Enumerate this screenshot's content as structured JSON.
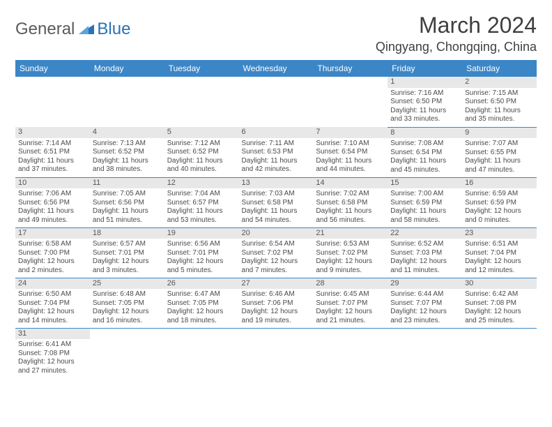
{
  "logo": {
    "text1": "General",
    "text2": "Blue"
  },
  "title": "March 2024",
  "location": "Qingyang, Chongqing, China",
  "colors": {
    "header_bg": "#3b86c7",
    "row_border": "#3b86c7",
    "daynum_bg": "#e8e8e8",
    "text": "#4a4a4a",
    "logo_general": "#5a5a5a",
    "logo_blue": "#2a72b5"
  },
  "typography": {
    "title_fontsize": 32,
    "location_fontsize": 18,
    "header_fontsize": 12,
    "body_fontsize": 10
  },
  "weekdays": [
    "Sunday",
    "Monday",
    "Tuesday",
    "Wednesday",
    "Thursday",
    "Friday",
    "Saturday"
  ],
  "weeks": [
    [
      null,
      null,
      null,
      null,
      null,
      {
        "d": "1",
        "sr": "7:16 AM",
        "ss": "6:50 PM",
        "dl1": "11 hours",
        "dl2": "and 33 minutes."
      },
      {
        "d": "2",
        "sr": "7:15 AM",
        "ss": "6:50 PM",
        "dl1": "11 hours",
        "dl2": "and 35 minutes."
      }
    ],
    [
      {
        "d": "3",
        "sr": "7:14 AM",
        "ss": "6:51 PM",
        "dl1": "11 hours",
        "dl2": "and 37 minutes."
      },
      {
        "d": "4",
        "sr": "7:13 AM",
        "ss": "6:52 PM",
        "dl1": "11 hours",
        "dl2": "and 38 minutes."
      },
      {
        "d": "5",
        "sr": "7:12 AM",
        "ss": "6:52 PM",
        "dl1": "11 hours",
        "dl2": "and 40 minutes."
      },
      {
        "d": "6",
        "sr": "7:11 AM",
        "ss": "6:53 PM",
        "dl1": "11 hours",
        "dl2": "and 42 minutes."
      },
      {
        "d": "7",
        "sr": "7:10 AM",
        "ss": "6:54 PM",
        "dl1": "11 hours",
        "dl2": "and 44 minutes."
      },
      {
        "d": "8",
        "sr": "7:08 AM",
        "ss": "6:54 PM",
        "dl1": "11 hours",
        "dl2": "and 45 minutes."
      },
      {
        "d": "9",
        "sr": "7:07 AM",
        "ss": "6:55 PM",
        "dl1": "11 hours",
        "dl2": "and 47 minutes."
      }
    ],
    [
      {
        "d": "10",
        "sr": "7:06 AM",
        "ss": "6:56 PM",
        "dl1": "11 hours",
        "dl2": "and 49 minutes."
      },
      {
        "d": "11",
        "sr": "7:05 AM",
        "ss": "6:56 PM",
        "dl1": "11 hours",
        "dl2": "and 51 minutes."
      },
      {
        "d": "12",
        "sr": "7:04 AM",
        "ss": "6:57 PM",
        "dl1": "11 hours",
        "dl2": "and 53 minutes."
      },
      {
        "d": "13",
        "sr": "7:03 AM",
        "ss": "6:58 PM",
        "dl1": "11 hours",
        "dl2": "and 54 minutes."
      },
      {
        "d": "14",
        "sr": "7:02 AM",
        "ss": "6:58 PM",
        "dl1": "11 hours",
        "dl2": "and 56 minutes."
      },
      {
        "d": "15",
        "sr": "7:00 AM",
        "ss": "6:59 PM",
        "dl1": "11 hours",
        "dl2": "and 58 minutes."
      },
      {
        "d": "16",
        "sr": "6:59 AM",
        "ss": "6:59 PM",
        "dl1": "12 hours",
        "dl2": "and 0 minutes."
      }
    ],
    [
      {
        "d": "17",
        "sr": "6:58 AM",
        "ss": "7:00 PM",
        "dl1": "12 hours",
        "dl2": "and 2 minutes."
      },
      {
        "d": "18",
        "sr": "6:57 AM",
        "ss": "7:01 PM",
        "dl1": "12 hours",
        "dl2": "and 3 minutes."
      },
      {
        "d": "19",
        "sr": "6:56 AM",
        "ss": "7:01 PM",
        "dl1": "12 hours",
        "dl2": "and 5 minutes."
      },
      {
        "d": "20",
        "sr": "6:54 AM",
        "ss": "7:02 PM",
        "dl1": "12 hours",
        "dl2": "and 7 minutes."
      },
      {
        "d": "21",
        "sr": "6:53 AM",
        "ss": "7:02 PM",
        "dl1": "12 hours",
        "dl2": "and 9 minutes."
      },
      {
        "d": "22",
        "sr": "6:52 AM",
        "ss": "7:03 PM",
        "dl1": "12 hours",
        "dl2": "and 11 minutes."
      },
      {
        "d": "23",
        "sr": "6:51 AM",
        "ss": "7:04 PM",
        "dl1": "12 hours",
        "dl2": "and 12 minutes."
      }
    ],
    [
      {
        "d": "24",
        "sr": "6:50 AM",
        "ss": "7:04 PM",
        "dl1": "12 hours",
        "dl2": "and 14 minutes."
      },
      {
        "d": "25",
        "sr": "6:48 AM",
        "ss": "7:05 PM",
        "dl1": "12 hours",
        "dl2": "and 16 minutes."
      },
      {
        "d": "26",
        "sr": "6:47 AM",
        "ss": "7:05 PM",
        "dl1": "12 hours",
        "dl2": "and 18 minutes."
      },
      {
        "d": "27",
        "sr": "6:46 AM",
        "ss": "7:06 PM",
        "dl1": "12 hours",
        "dl2": "and 19 minutes."
      },
      {
        "d": "28",
        "sr": "6:45 AM",
        "ss": "7:07 PM",
        "dl1": "12 hours",
        "dl2": "and 21 minutes."
      },
      {
        "d": "29",
        "sr": "6:44 AM",
        "ss": "7:07 PM",
        "dl1": "12 hours",
        "dl2": "and 23 minutes."
      },
      {
        "d": "30",
        "sr": "6:42 AM",
        "ss": "7:08 PM",
        "dl1": "12 hours",
        "dl2": "and 25 minutes."
      }
    ],
    [
      {
        "d": "31",
        "sr": "6:41 AM",
        "ss": "7:08 PM",
        "dl1": "12 hours",
        "dl2": "and 27 minutes."
      },
      null,
      null,
      null,
      null,
      null,
      null
    ]
  ],
  "labels": {
    "sunrise": "Sunrise:",
    "sunset": "Sunset:",
    "daylight": "Daylight:"
  }
}
